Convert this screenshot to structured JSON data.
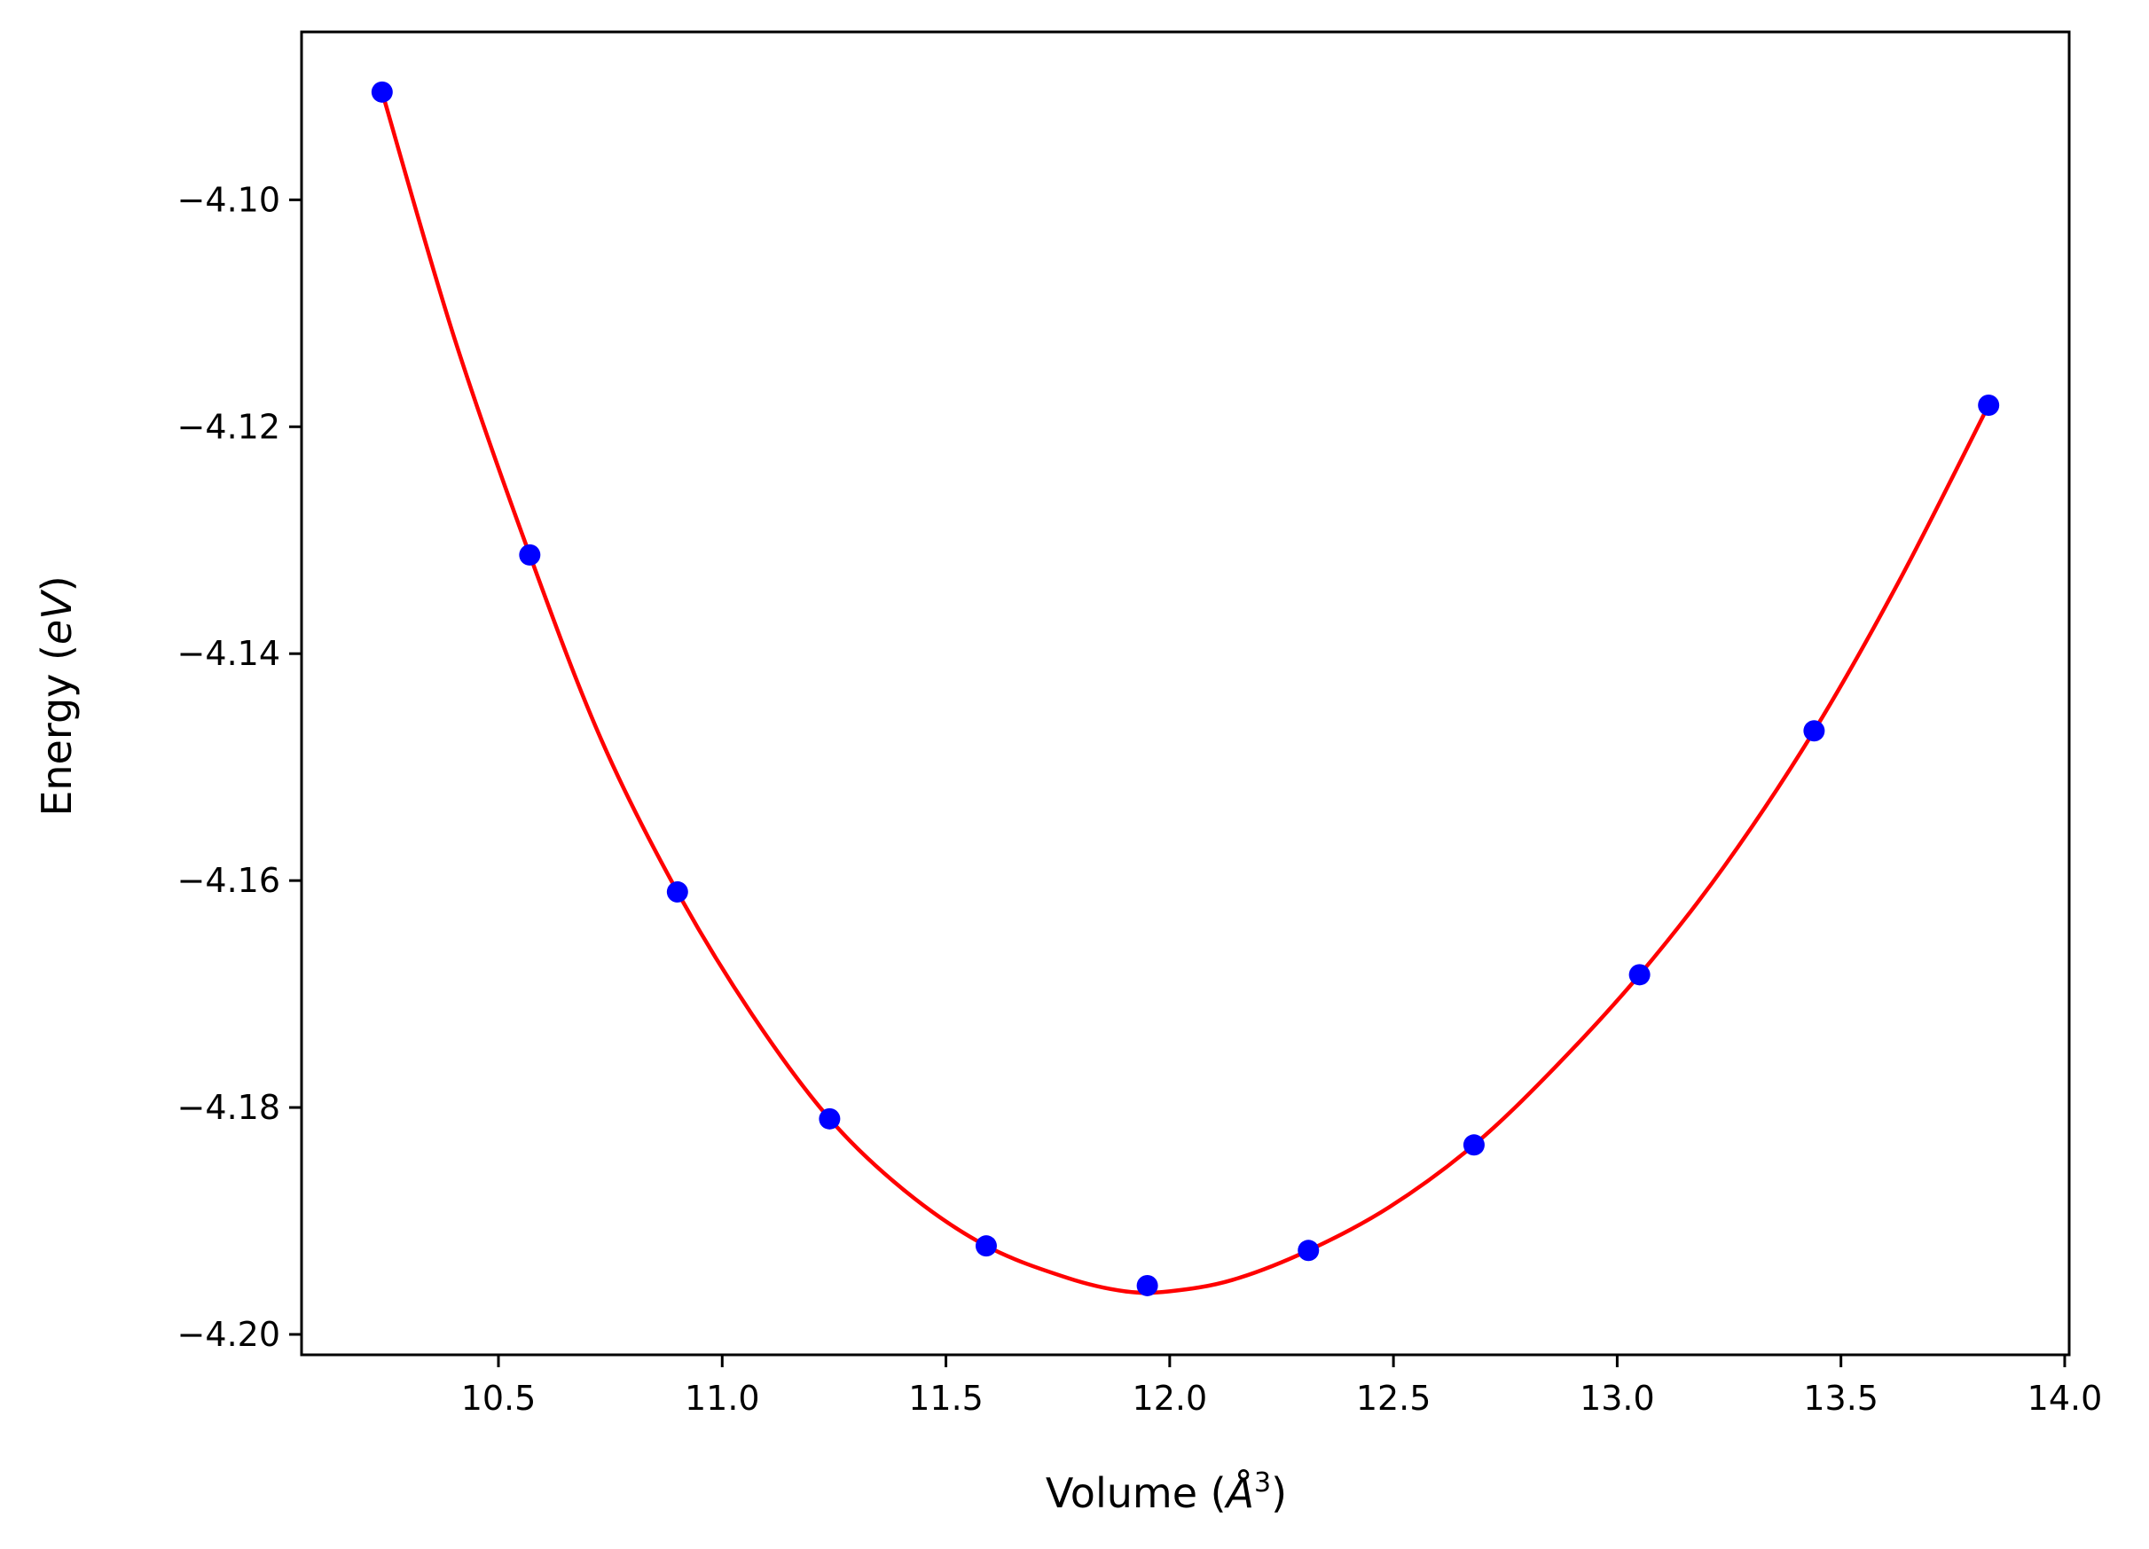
{
  "chart_data": {
    "type": "scatter",
    "title": "",
    "xlabel_text": "Volume (",
    "xlabel_unit": "Å",
    "xlabel_exp": "3",
    "xlabel_close": ")",
    "ylabel_text": "Energy (",
    "ylabel_unit": "eV",
    "ylabel_close": ")",
    "xlim": [
      10.06,
      14.01
    ],
    "ylim": [
      -4.2018,
      -4.0852
    ],
    "x_ticks": [
      10.5,
      11.0,
      11.5,
      12.0,
      12.5,
      13.0,
      13.5,
      14.0
    ],
    "x_tick_labels": [
      "10.5",
      "11.0",
      "11.5",
      "12.0",
      "12.5",
      "13.0",
      "13.5",
      "14.0"
    ],
    "y_ticks": [
      -4.1,
      -4.12,
      -4.14,
      -4.16,
      -4.18,
      -4.2
    ],
    "y_tick_labels": [
      "−4.10",
      "−4.12",
      "−4.14",
      "−4.16",
      "−4.18",
      "−4.20"
    ],
    "grid": false,
    "legend": "none",
    "series": [
      {
        "kind": "points",
        "color": "#0000ff",
        "x": [
          10.24,
          10.57,
          10.9,
          11.24,
          11.59,
          11.95,
          12.31,
          12.68,
          13.05,
          13.44,
          13.83
        ],
        "y": [
          -4.0905,
          -4.1313,
          -4.161,
          -4.181,
          -4.1922,
          -4.1957,
          -4.1926,
          -4.1833,
          -4.1683,
          -4.1468,
          -4.1181
        ]
      },
      {
        "kind": "fit-curve",
        "color": "#ff0000",
        "x": [
          10.24,
          10.4,
          10.57,
          10.73,
          10.9,
          11.07,
          11.24,
          11.41,
          11.59,
          11.77,
          11.9,
          12.0,
          12.14,
          12.31,
          12.49,
          12.68,
          12.86,
          13.05,
          13.24,
          13.44,
          13.63,
          13.83
        ],
        "y": [
          -4.0905,
          -4.112,
          -4.1313,
          -4.1476,
          -4.161,
          -4.172,
          -4.181,
          -4.1874,
          -4.1922,
          -4.195,
          -4.1962,
          -4.1962,
          -4.1952,
          -4.1926,
          -4.1888,
          -4.1833,
          -4.1765,
          -4.1683,
          -4.1587,
          -4.1468,
          -4.1336,
          -4.1181
        ]
      }
    ]
  }
}
